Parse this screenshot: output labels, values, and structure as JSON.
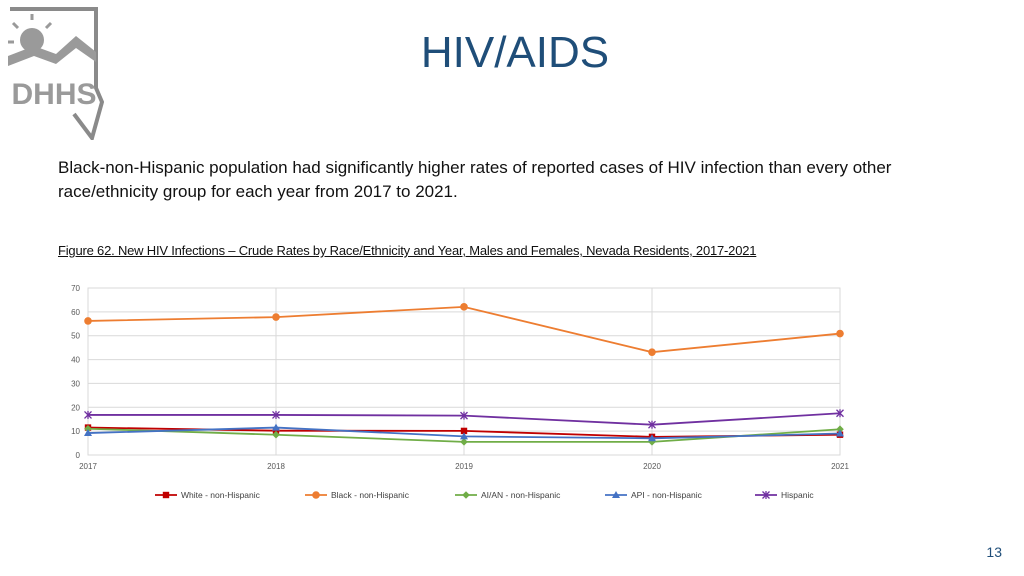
{
  "slide": {
    "title": "HIV/AIDS",
    "body": "Black-non-Hispanic population had significantly higher rates of reported cases of HIV infection than every other race/ethnicity group for each year from 2017 to 2021.",
    "caption": "Figure 62. New HIV Infections – Crude Rates by Race/Ethnicity and Year, Males and Females, Nevada Residents, 2017-2021",
    "page_number": "13",
    "logo_text": "DHHS"
  },
  "chart_data": {
    "type": "line",
    "title": "",
    "xlabel": "",
    "ylabel": "",
    "x": [
      "2017",
      "2018",
      "2019",
      "2020",
      "2021"
    ],
    "ylim": [
      0,
      70
    ],
    "yticks": [
      "0",
      "10",
      "20",
      "30",
      "40",
      "50",
      "60",
      "70"
    ],
    "grid": true,
    "legend": "bottom",
    "series": [
      {
        "name": "White - non-Hispanic",
        "values": [
          11.5,
          10.2,
          10.1,
          7.6,
          8.5
        ],
        "color": "#c00000",
        "marker": "square"
      },
      {
        "name": "Black - non-Hispanic",
        "values": [
          56.2,
          57.8,
          62.1,
          43.1,
          50.9
        ],
        "color": "#ed7d31",
        "marker": "circle"
      },
      {
        "name": "AI/AN - non-Hispanic",
        "values": [
          11.0,
          8.5,
          5.5,
          5.5,
          10.8
        ],
        "color": "#70ad47",
        "marker": "diamond"
      },
      {
        "name": "API - non-Hispanic",
        "values": [
          9.2,
          11.5,
          7.8,
          7.0,
          9.0
        ],
        "color": "#4472c4",
        "marker": "triangle"
      },
      {
        "name": "Hispanic",
        "values": [
          16.8,
          16.8,
          16.5,
          12.7,
          17.5
        ],
        "color": "#7030a0",
        "marker": "star"
      }
    ]
  }
}
